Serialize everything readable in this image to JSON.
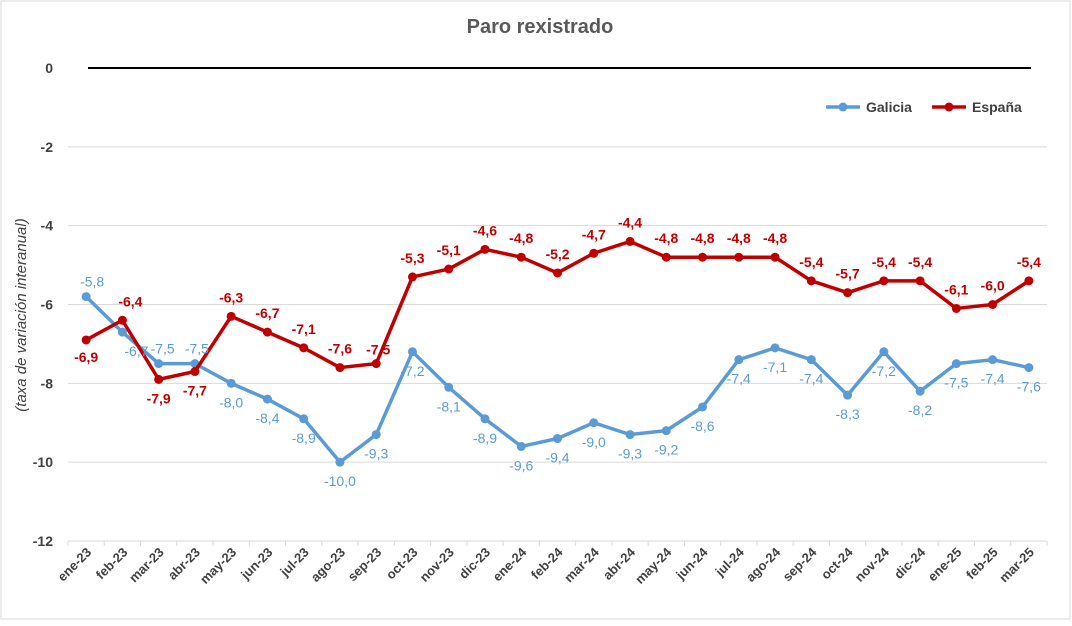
{
  "chart_data": {
    "type": "line",
    "title": "Paro rexistrado",
    "xlabel": "",
    "ylabel": "(taxa de variación interanual)",
    "ylim": [
      -12,
      0
    ],
    "yticks": [
      0,
      -2,
      -4,
      -6,
      -8,
      -10,
      -12
    ],
    "ytick_labels": [
      "0",
      "-2",
      "-4",
      "-6",
      "-8",
      "-10",
      "-12"
    ],
    "grid": true,
    "legend_position": "top-right",
    "categories": [
      "ene-23",
      "feb-23",
      "mar-23",
      "abr-23",
      "may-23",
      "jun-23",
      "jul-23",
      "ago-23",
      "sep-23",
      "oct-23",
      "nov-23",
      "dic-23",
      "ene-24",
      "feb-24",
      "mar-24",
      "abr-24",
      "may-24",
      "jun-24",
      "jul-24",
      "ago-24",
      "sep-24",
      "oct-24",
      "nov-24",
      "dic-24",
      "ene-25",
      "feb-25",
      "mar-25"
    ],
    "series": [
      {
        "name": "Galicia",
        "color": "#5b9bd5",
        "values": [
          -5.8,
          -6.7,
          -7.5,
          -7.5,
          -8.0,
          -8.4,
          -8.9,
          -10.0,
          -9.3,
          -7.2,
          -8.1,
          -8.9,
          -9.6,
          -9.4,
          -9.0,
          -9.3,
          -9.2,
          -8.6,
          -7.4,
          -7.1,
          -7.4,
          -8.3,
          -7.2,
          -8.2,
          -7.5,
          -7.4,
          -7.6
        ],
        "labels": [
          "-5,8",
          "-6,7",
          "-7,5",
          "-7,5",
          "-8,0",
          "-8,4",
          "-8,9",
          "-10,0",
          "-9,3",
          "-7,2",
          "-8,1",
          "-8,9",
          "-9,6",
          "-9,4",
          "-9,0",
          "-9,3",
          "-9,2",
          "-8,6",
          "-7,4",
          "-7,1",
          "-7,4",
          "-8,3",
          "-7,2",
          "-8,2",
          "-7,5",
          "-7,4",
          "-7,6"
        ]
      },
      {
        "name": "España",
        "color": "#c00000",
        "values": [
          -6.9,
          -6.4,
          -7.9,
          -7.7,
          -6.3,
          -6.7,
          -7.1,
          -7.6,
          -7.5,
          -5.3,
          -5.1,
          -4.6,
          -4.8,
          -5.2,
          -4.7,
          -4.4,
          -4.8,
          -4.8,
          -4.8,
          -4.8,
          -5.4,
          -5.7,
          -5.4,
          -5.4,
          -6.1,
          -6.0,
          -5.4
        ],
        "labels": [
          "-6,9",
          "-6,4",
          "-7,9",
          "-7,7",
          "-6,3",
          "-6,7",
          "-7,1",
          "-7,6",
          "-7,5",
          "-5,3",
          "-5,1",
          "-4,6",
          "-4,8",
          "-5,2",
          "-4,7",
          "-4,4",
          "-4,8",
          "-4,8",
          "-4,8",
          "-4,8",
          "-5,4",
          "-5,7",
          "-5,4",
          "-5,4",
          "-6,1",
          "-6,0",
          "-5,4"
        ]
      }
    ]
  }
}
